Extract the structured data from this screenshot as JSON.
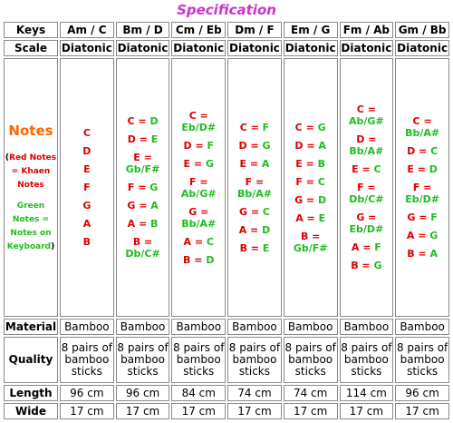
{
  "title": "Specification",
  "labels": {
    "keys": "Keys",
    "scale": "Scale",
    "notes": "Notes",
    "material": "Material",
    "quality": "Quality",
    "length": "Length",
    "wide": "Wide"
  },
  "legend": {
    "open": "(",
    "red": "Red Notes = Khaen Notes",
    "green": "Green Notes = Notes on Keyboard",
    "close": ")"
  },
  "columns": [
    {
      "key": "Am / C",
      "scale": "Diatonic",
      "notes": [
        {
          "a": "C",
          "b": ""
        },
        {
          "a": "D",
          "b": ""
        },
        {
          "a": "E",
          "b": ""
        },
        {
          "a": "F",
          "b": ""
        },
        {
          "a": "G",
          "b": ""
        },
        {
          "a": "A",
          "b": ""
        },
        {
          "a": "B",
          "b": ""
        }
      ],
      "material": "Bamboo",
      "quality": "8 pairs of bamboo sticks",
      "length": "96 cm",
      "wide": "17 cm"
    },
    {
      "key": "Bm / D",
      "scale": "Diatonic",
      "notes": [
        {
          "a": "C = ",
          "b": "D"
        },
        {
          "a": "D = ",
          "b": "E"
        },
        {
          "a": "E = ",
          "b": "Gb/F#"
        },
        {
          "a": "F = ",
          "b": "G"
        },
        {
          "a": "G = ",
          "b": "A"
        },
        {
          "a": "A = ",
          "b": "B"
        },
        {
          "a": "B = ",
          "b": "Db/C#"
        }
      ],
      "material": "Bamboo",
      "quality": "8 pairs of bamboo sticks",
      "length": "96 cm",
      "wide": "17 cm"
    },
    {
      "key": "Cm / Eb",
      "scale": "Diatonic",
      "notes": [
        {
          "a": "C = ",
          "b": "Eb/D#"
        },
        {
          "a": "D = ",
          "b": "F"
        },
        {
          "a": "E = ",
          "b": "G"
        },
        {
          "a": "F = ",
          "b": "Ab/G#"
        },
        {
          "a": "G = ",
          "b": "Bb/A#"
        },
        {
          "a": "A = ",
          "b": "C"
        },
        {
          "a": "B = ",
          "b": "D"
        }
      ],
      "material": "Bamboo",
      "quality": "8 pairs of bamboo sticks",
      "length": "84 cm",
      "wide": "17 cm"
    },
    {
      "key": "Dm / F",
      "scale": "Diatonic",
      "notes": [
        {
          "a": "C = ",
          "b": "F"
        },
        {
          "a": "D = ",
          "b": "G"
        },
        {
          "a": "E = ",
          "b": "A"
        },
        {
          "a": "F = ",
          "b": "Bb/A#"
        },
        {
          "a": "G = ",
          "b": "C"
        },
        {
          "a": "A = ",
          "b": "D"
        },
        {
          "a": "B = ",
          "b": "E"
        }
      ],
      "material": "Bamboo",
      "quality": "8 pairs of bamboo sticks",
      "length": "74 cm",
      "wide": "17 cm"
    },
    {
      "key": "Em / G",
      "scale": "Diatonic",
      "notes": [
        {
          "a": "C = ",
          "b": "G"
        },
        {
          "a": "D = ",
          "b": "A"
        },
        {
          "a": "E = ",
          "b": "B"
        },
        {
          "a": "F = ",
          "b": "C"
        },
        {
          "a": "G = ",
          "b": "D"
        },
        {
          "a": "A = ",
          "b": "E"
        },
        {
          "a": "B = ",
          "b": "Gb/F#"
        }
      ],
      "material": "Bamboo",
      "quality": "8 pairs of bamboo sticks",
      "length": "74 cm",
      "wide": "17 cm"
    },
    {
      "key": "Fm / Ab",
      "scale": "Diatonic",
      "notes": [
        {
          "a": "C = ",
          "b": "Ab/G#"
        },
        {
          "a": "D = ",
          "b": "Bb/A#"
        },
        {
          "a": "E = ",
          "b": "C"
        },
        {
          "a": "F = ",
          "b": "Db/C#"
        },
        {
          "a": "G = ",
          "b": "Eb/D#"
        },
        {
          "a": "A = ",
          "b": "F"
        },
        {
          "a": "B = ",
          "b": "G"
        }
      ],
      "material": "Bamboo",
      "quality": "8 pairs of bamboo sticks",
      "length": "114 cm",
      "wide": "17 cm"
    },
    {
      "key": "Gm / Bb",
      "scale": "Diatonic",
      "notes": [
        {
          "a": "C = ",
          "b": "Bb/A#"
        },
        {
          "a": "D = ",
          "b": "C"
        },
        {
          "a": "E = ",
          "b": "D"
        },
        {
          "a": "F = ",
          "b": "Eb/D#"
        },
        {
          "a": "G = ",
          "b": "F"
        },
        {
          "a": "A = ",
          "b": "G"
        },
        {
          "a": "B = ",
          "b": "A"
        }
      ],
      "material": "Bamboo",
      "quality": "8 pairs of bamboo sticks",
      "length": "96 cm",
      "wide": "17 cm"
    }
  ]
}
